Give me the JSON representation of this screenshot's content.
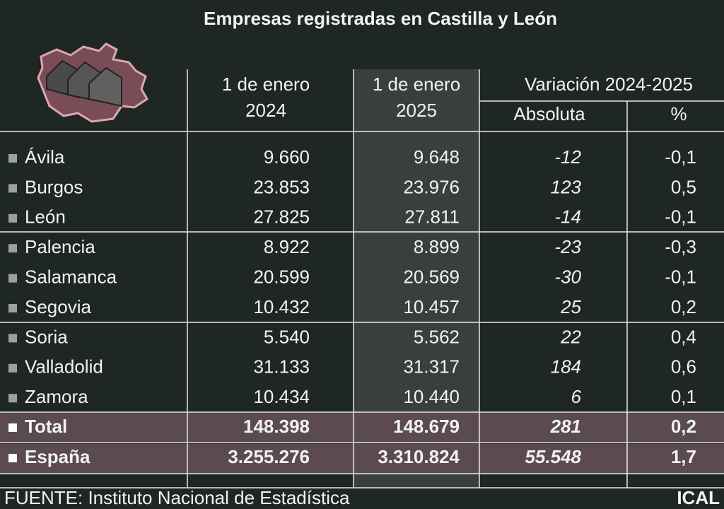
{
  "title": "Empresas registradas en Castilla y León",
  "columns": [
    {
      "line1": "1 de enero",
      "line2": "2024"
    },
    {
      "line1": "1 de enero",
      "line2": "2025"
    }
  ],
  "variation": {
    "title": "Variación 2024-2025",
    "absolute": "Absoluta",
    "percent": "%"
  },
  "rows": [
    [
      "Ávila",
      "9.660",
      "9.648",
      "-12",
      "-0,1"
    ],
    [
      "Burgos",
      "23.853",
      "23.976",
      "123",
      "0,5"
    ],
    [
      "León",
      "27.825",
      "27.811",
      "-14",
      "-0,1"
    ],
    [
      "Palencia",
      "8.922",
      "8.899",
      "-23",
      "-0,3"
    ],
    [
      "Salamanca",
      "20.599",
      "20.569",
      "-30",
      "-0,1"
    ],
    [
      "Segovia",
      "10.432",
      "10.457",
      "25",
      "0,2"
    ],
    [
      "Soria",
      "5.540",
      "5.562",
      "22",
      "0,4"
    ],
    [
      "Valladolid",
      "31.133",
      "31.317",
      "184",
      "0,6"
    ],
    [
      "Zamora",
      "10.434",
      "10.440",
      "6",
      "0,1"
    ]
  ],
  "totals": [
    [
      "Total",
      "148.398",
      "148.679",
      "281",
      "0,2"
    ],
    [
      "España",
      "3.255.276",
      "3.310.824",
      "55.548",
      "1,7"
    ]
  ],
  "footer": {
    "source": "FUENTE: Instituto Nacional de Estadística",
    "credit": "ICAL"
  }
}
